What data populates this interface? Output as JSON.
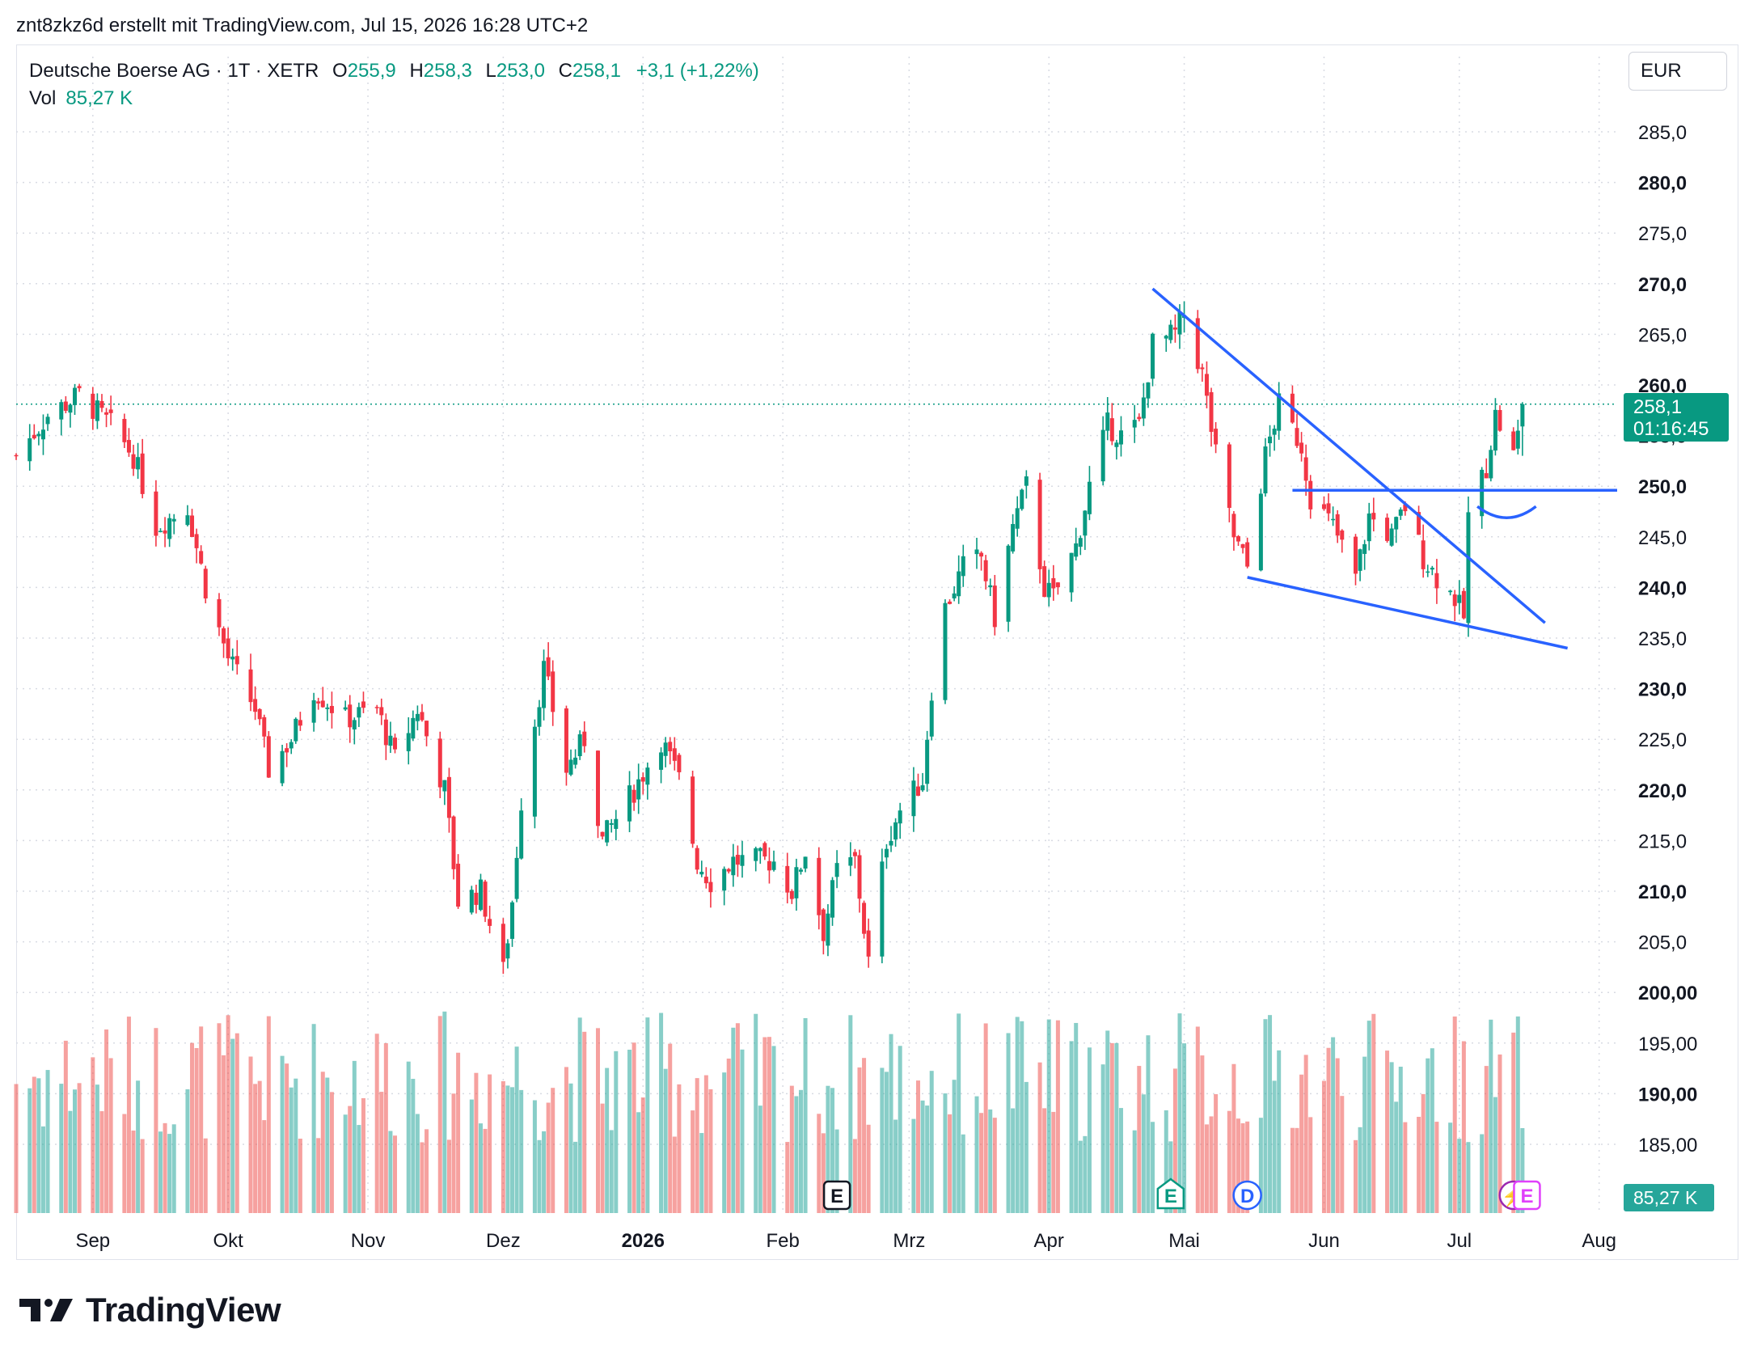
{
  "header": {
    "attribution": "znt8zkz6d erstellt mit TradingView.com, Jul 15, 2026 16:28 UTC+2"
  },
  "legend": {
    "symbol": "Deutsche Boerse AG · 1T · XETR",
    "open_label": "O",
    "open": "255,9",
    "high_label": "H",
    "high": "258,3",
    "low_label": "L",
    "low": "253,0",
    "close_label": "C",
    "close": "258,1",
    "change": "+3,1 (+1,22%)",
    "vol_label": "Vol",
    "vol": "85,27 K"
  },
  "currency": "EUR",
  "price_tag": {
    "price": "258,1",
    "countdown": "01:16:45"
  },
  "vol_tag": "85,27 K",
  "brand": {
    "name": "TradingView",
    "logo": "tradingview-logo"
  },
  "colors": {
    "up": "#089981",
    "down": "#f23645",
    "vol_up": "#26a69a",
    "vol_down": "#ef5350",
    "drawing": "#2962ff"
  },
  "event_markers": [
    {
      "label": "E",
      "icon": "earnings-icon",
      "date": "2026-02-13"
    },
    {
      "label": "E",
      "icon": "earnings-house-icon",
      "date": "2026-04-28"
    },
    {
      "label": "D",
      "icon": "dividend-icon",
      "date": "2026-05-15"
    },
    {
      "label": "⚡",
      "icon": "lightning-icon",
      "date": "2026-07-13"
    },
    {
      "label": "E",
      "icon": "earnings-future-icon",
      "date": "2026-07-16"
    }
  ],
  "chart_data": {
    "type": "candlestick",
    "x_axis": {
      "range": [
        "2025-08-15",
        "2026-08-05"
      ],
      "ticks": [
        {
          "label": "Sep",
          "date": "2025-09-01"
        },
        {
          "label": "Okt",
          "date": "2025-10-01"
        },
        {
          "label": "Nov",
          "date": "2025-11-01"
        },
        {
          "label": "Dez",
          "date": "2025-12-01"
        },
        {
          "label": "2026",
          "date": "2026-01-01",
          "bold": true
        },
        {
          "label": "Feb",
          "date": "2026-02-01"
        },
        {
          "label": "Mrz",
          "date": "2026-03-01"
        },
        {
          "label": "Apr",
          "date": "2026-04-01"
        },
        {
          "label": "Mai",
          "date": "2026-05-01"
        },
        {
          "label": "Jun",
          "date": "2026-06-01"
        },
        {
          "label": "Jul",
          "date": "2026-07-01"
        },
        {
          "label": "Aug",
          "date": "2026-08-01"
        }
      ]
    },
    "y_axis": {
      "unit": "EUR",
      "range": [
        181,
        289
      ],
      "ticks": [
        {
          "label": "285,0",
          "value": 285
        },
        {
          "label": "280,0",
          "value": 280,
          "bold": true
        },
        {
          "label": "275,0",
          "value": 275
        },
        {
          "label": "270,0",
          "value": 270,
          "bold": true
        },
        {
          "label": "265,0",
          "value": 265
        },
        {
          "label": "260,0",
          "value": 260,
          "bold": true
        },
        {
          "label": "255,0",
          "value": 255
        },
        {
          "label": "250,0",
          "value": 250,
          "bold": true
        },
        {
          "label": "245,0",
          "value": 245
        },
        {
          "label": "240,0",
          "value": 240,
          "bold": true
        },
        {
          "label": "235,0",
          "value": 235
        },
        {
          "label": "230,0",
          "value": 230,
          "bold": true
        },
        {
          "label": "225,0",
          "value": 225
        },
        {
          "label": "220,0",
          "value": 220,
          "bold": true
        },
        {
          "label": "215,0",
          "value": 215
        },
        {
          "label": "210,0",
          "value": 210,
          "bold": true
        },
        {
          "label": "205,0",
          "value": 205
        },
        {
          "label": "200,00",
          "value": 200,
          "bold": true
        },
        {
          "label": "195,00",
          "value": 195
        },
        {
          "label": "190,00",
          "value": 190,
          "bold": true
        },
        {
          "label": "185,00",
          "value": 185
        }
      ]
    },
    "grid": true,
    "last_price": 258.1,
    "close_path": [
      [
        "2025-08-15",
        253
      ],
      [
        "2025-08-22",
        257
      ],
      [
        "2025-08-29",
        259
      ],
      [
        "2025-09-05",
        256
      ],
      [
        "2025-09-10",
        253
      ],
      [
        "2025-09-15",
        246
      ],
      [
        "2025-09-22",
        248
      ],
      [
        "2025-09-26",
        240
      ],
      [
        "2025-10-01",
        233
      ],
      [
        "2025-10-07",
        228
      ],
      [
        "2025-10-10",
        222
      ],
      [
        "2025-10-15",
        225
      ],
      [
        "2025-10-20",
        230
      ],
      [
        "2025-10-27",
        227
      ],
      [
        "2025-11-03",
        228
      ],
      [
        "2025-11-07",
        223
      ],
      [
        "2025-11-12",
        228
      ],
      [
        "2025-11-18",
        220
      ],
      [
        "2025-11-21",
        209
      ],
      [
        "2025-11-26",
        210
      ],
      [
        "2025-12-01",
        202
      ],
      [
        "2025-12-03",
        209
      ],
      [
        "2025-12-05",
        219
      ],
      [
        "2025-12-10",
        232
      ],
      [
        "2025-12-15",
        222
      ],
      [
        "2025-12-19",
        225
      ],
      [
        "2025-12-23",
        215
      ],
      [
        "2025-12-30",
        220
      ],
      [
        "2026-01-05",
        225
      ],
      [
        "2026-01-09",
        221
      ],
      [
        "2026-01-13",
        213
      ],
      [
        "2026-01-16",
        211
      ],
      [
        "2026-01-21",
        213
      ],
      [
        "2026-01-27",
        213
      ],
      [
        "2026-01-30",
        213
      ],
      [
        "2026-02-03",
        210
      ],
      [
        "2026-02-06",
        214
      ],
      [
        "2026-02-10",
        206
      ],
      [
        "2026-02-13",
        212
      ],
      [
        "2026-02-17",
        213
      ],
      [
        "2026-02-20",
        203
      ],
      [
        "2026-02-24",
        215
      ],
      [
        "2026-02-27",
        218
      ],
      [
        "2026-03-04",
        221
      ],
      [
        "2026-03-06",
        230
      ],
      [
        "2026-03-09",
        238
      ],
      [
        "2026-03-13",
        242
      ],
      [
        "2026-03-17",
        243
      ],
      [
        "2026-03-20",
        237
      ],
      [
        "2026-03-24",
        246
      ],
      [
        "2026-03-27",
        250
      ],
      [
        "2026-03-31",
        240
      ],
      [
        "2026-04-02",
        239
      ],
      [
        "2026-04-07",
        244
      ],
      [
        "2026-04-10",
        250
      ],
      [
        "2026-04-14",
        256
      ],
      [
        "2026-04-17",
        255
      ],
      [
        "2026-04-21",
        256
      ],
      [
        "2026-04-24",
        264
      ],
      [
        "2026-04-29",
        265
      ],
      [
        "2026-05-01",
        267
      ],
      [
        "2026-05-05",
        261
      ],
      [
        "2026-05-08",
        253
      ],
      [
        "2026-05-12",
        245
      ],
      [
        "2026-05-15",
        242
      ],
      [
        "2026-05-19",
        253
      ],
      [
        "2026-05-22",
        258
      ],
      [
        "2026-05-27",
        254
      ],
      [
        "2026-05-29",
        249
      ],
      [
        "2026-06-03",
        246
      ],
      [
        "2026-06-08",
        241
      ],
      [
        "2026-06-11",
        247
      ],
      [
        "2026-06-16",
        245
      ],
      [
        "2026-06-19",
        248
      ],
      [
        "2026-06-23",
        243
      ],
      [
        "2026-06-26",
        241
      ],
      [
        "2026-06-30",
        239
      ],
      [
        "2026-07-02",
        237
      ],
      [
        "2026-07-03",
        247
      ],
      [
        "2026-07-07",
        252
      ],
      [
        "2026-07-09",
        257
      ],
      [
        "2026-07-13",
        253
      ],
      [
        "2026-07-14",
        255
      ],
      [
        "2026-07-15",
        258.1
      ]
    ],
    "annotations": [
      {
        "type": "line",
        "name": "upper-trendline",
        "from": [
          "2026-04-24",
          269.5
        ],
        "to": [
          "2026-07-20",
          236.5
        ]
      },
      {
        "type": "line",
        "name": "lower-trendline",
        "from": [
          "2026-05-15",
          241
        ],
        "to": [
          "2026-07-25",
          234
        ]
      },
      {
        "type": "line",
        "name": "horizontal-level",
        "from": [
          "2026-05-25",
          249.6
        ],
        "to": [
          "2026-08-05",
          249.6
        ]
      },
      {
        "type": "curve",
        "name": "cup-arc",
        "from": [
          "2026-07-05",
          248
        ],
        "to": [
          "2026-07-18",
          248
        ]
      }
    ]
  }
}
